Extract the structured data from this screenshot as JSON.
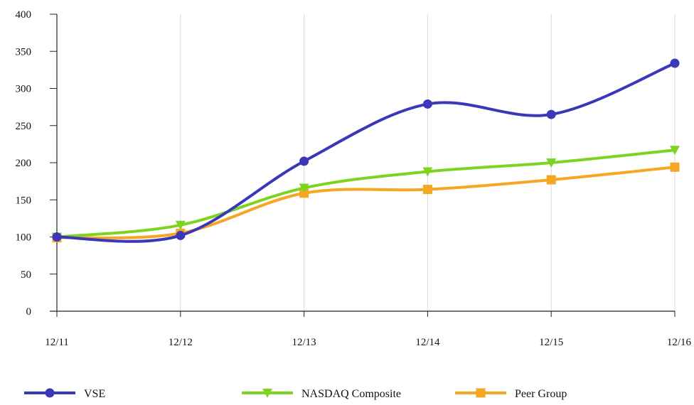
{
  "chart_data": {
    "type": "line",
    "categories": [
      "12/11",
      "12/12",
      "12/13",
      "12/14",
      "12/15",
      "12/16"
    ],
    "ylim": [
      0,
      400
    ],
    "yticks": [
      0,
      50,
      100,
      150,
      200,
      250,
      300,
      350,
      400
    ],
    "grid": "vertical",
    "legend_position": "bottom",
    "series": [
      {
        "name": "VSE",
        "values": [
          100,
          102,
          202,
          279,
          265,
          334
        ],
        "color": "#3a38b8",
        "marker": "circle"
      },
      {
        "name": "NASDAQ Composite",
        "values": [
          100,
          116,
          166,
          188,
          200,
          217
        ],
        "color": "#7ed321",
        "marker": "triangle-down"
      },
      {
        "name": "Peer Group",
        "values": [
          99,
          105,
          159,
          164,
          177,
          194
        ],
        "color": "#f5a623",
        "marker": "square"
      }
    ]
  }
}
